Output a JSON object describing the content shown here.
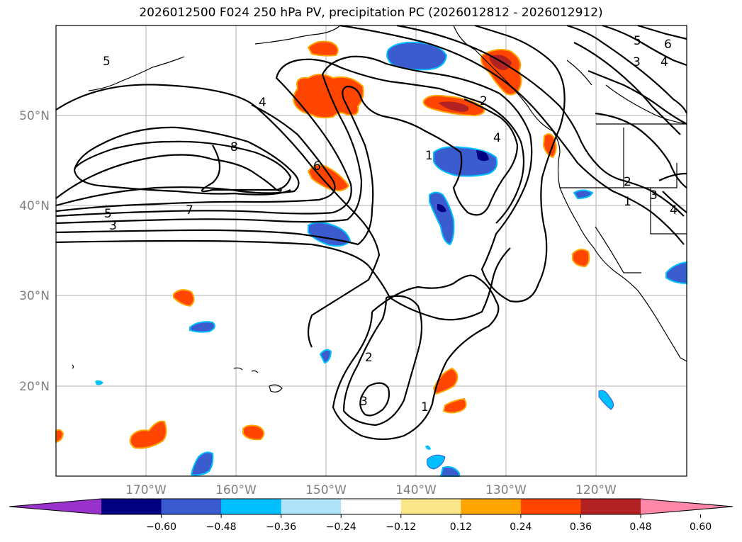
{
  "title": "2026012500 F024 250 hPa PV, precipitation PC (2026012812 - 2026012912)",
  "map": {
    "lon_labels": [
      "170°W",
      "160°W",
      "150°W",
      "140°W",
      "130°W",
      "120°W"
    ],
    "lat_labels": [
      "50°N",
      "40°N",
      "30°N",
      "20°N"
    ]
  },
  "contour_labels": [
    "5",
    "4",
    "8",
    "6",
    "7",
    "5",
    "3",
    "2",
    "1",
    "4",
    "5",
    "6",
    "3",
    "4",
    "2",
    "1",
    "3",
    "4",
    "2",
    "3",
    "1"
  ],
  "colorbar": {
    "ticks": [
      "−0.60",
      "−0.48",
      "−0.36",
      "−0.24",
      "−0.12",
      "0.12",
      "0.24",
      "0.36",
      "0.48",
      "0.60"
    ],
    "colors": [
      "#9932cc",
      "#000080",
      "#3a5ccf",
      "#00bfff",
      "#aee3f8",
      "#ffffff",
      "#fce68a",
      "#ffa500",
      "#ff4500",
      "#b22222",
      "#ff88aa"
    ]
  }
}
